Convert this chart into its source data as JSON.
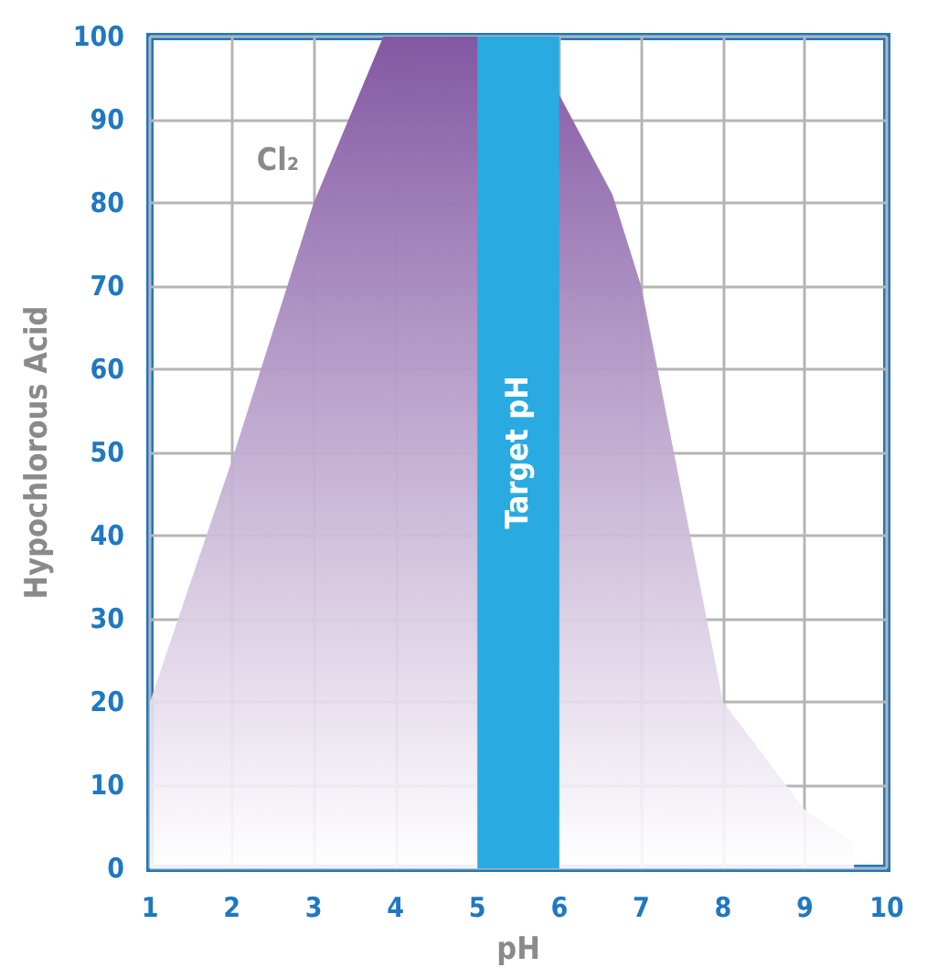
{
  "chart_data": {
    "type": "area",
    "xlabel": "pH",
    "ylabel": "Hypochlorous Acid",
    "xlim": [
      1,
      10
    ],
    "ylim": [
      0,
      100
    ],
    "xticks": [
      1,
      2,
      3,
      4,
      5,
      6,
      7,
      8,
      9,
      10
    ],
    "yticks": [
      0,
      10,
      20,
      30,
      40,
      50,
      60,
      70,
      80,
      90,
      100
    ],
    "grid": true,
    "marker": "none",
    "series": [
      {
        "color": "#8358a3",
        "x": [
          1,
          2,
          3,
          3.85,
          5,
          6,
          6.65,
          7,
          8,
          9,
          9.6
        ],
        "values": [
          20,
          49,
          80,
          100,
          100,
          93,
          81,
          70,
          20,
          7,
          3
        ]
      }
    ],
    "bands": [
      {
        "axis": "x",
        "from": 5,
        "to": 6,
        "label": "Target pH",
        "color": "#29abe2"
      }
    ],
    "annotations": [
      "Cl₂"
    ]
  }
}
